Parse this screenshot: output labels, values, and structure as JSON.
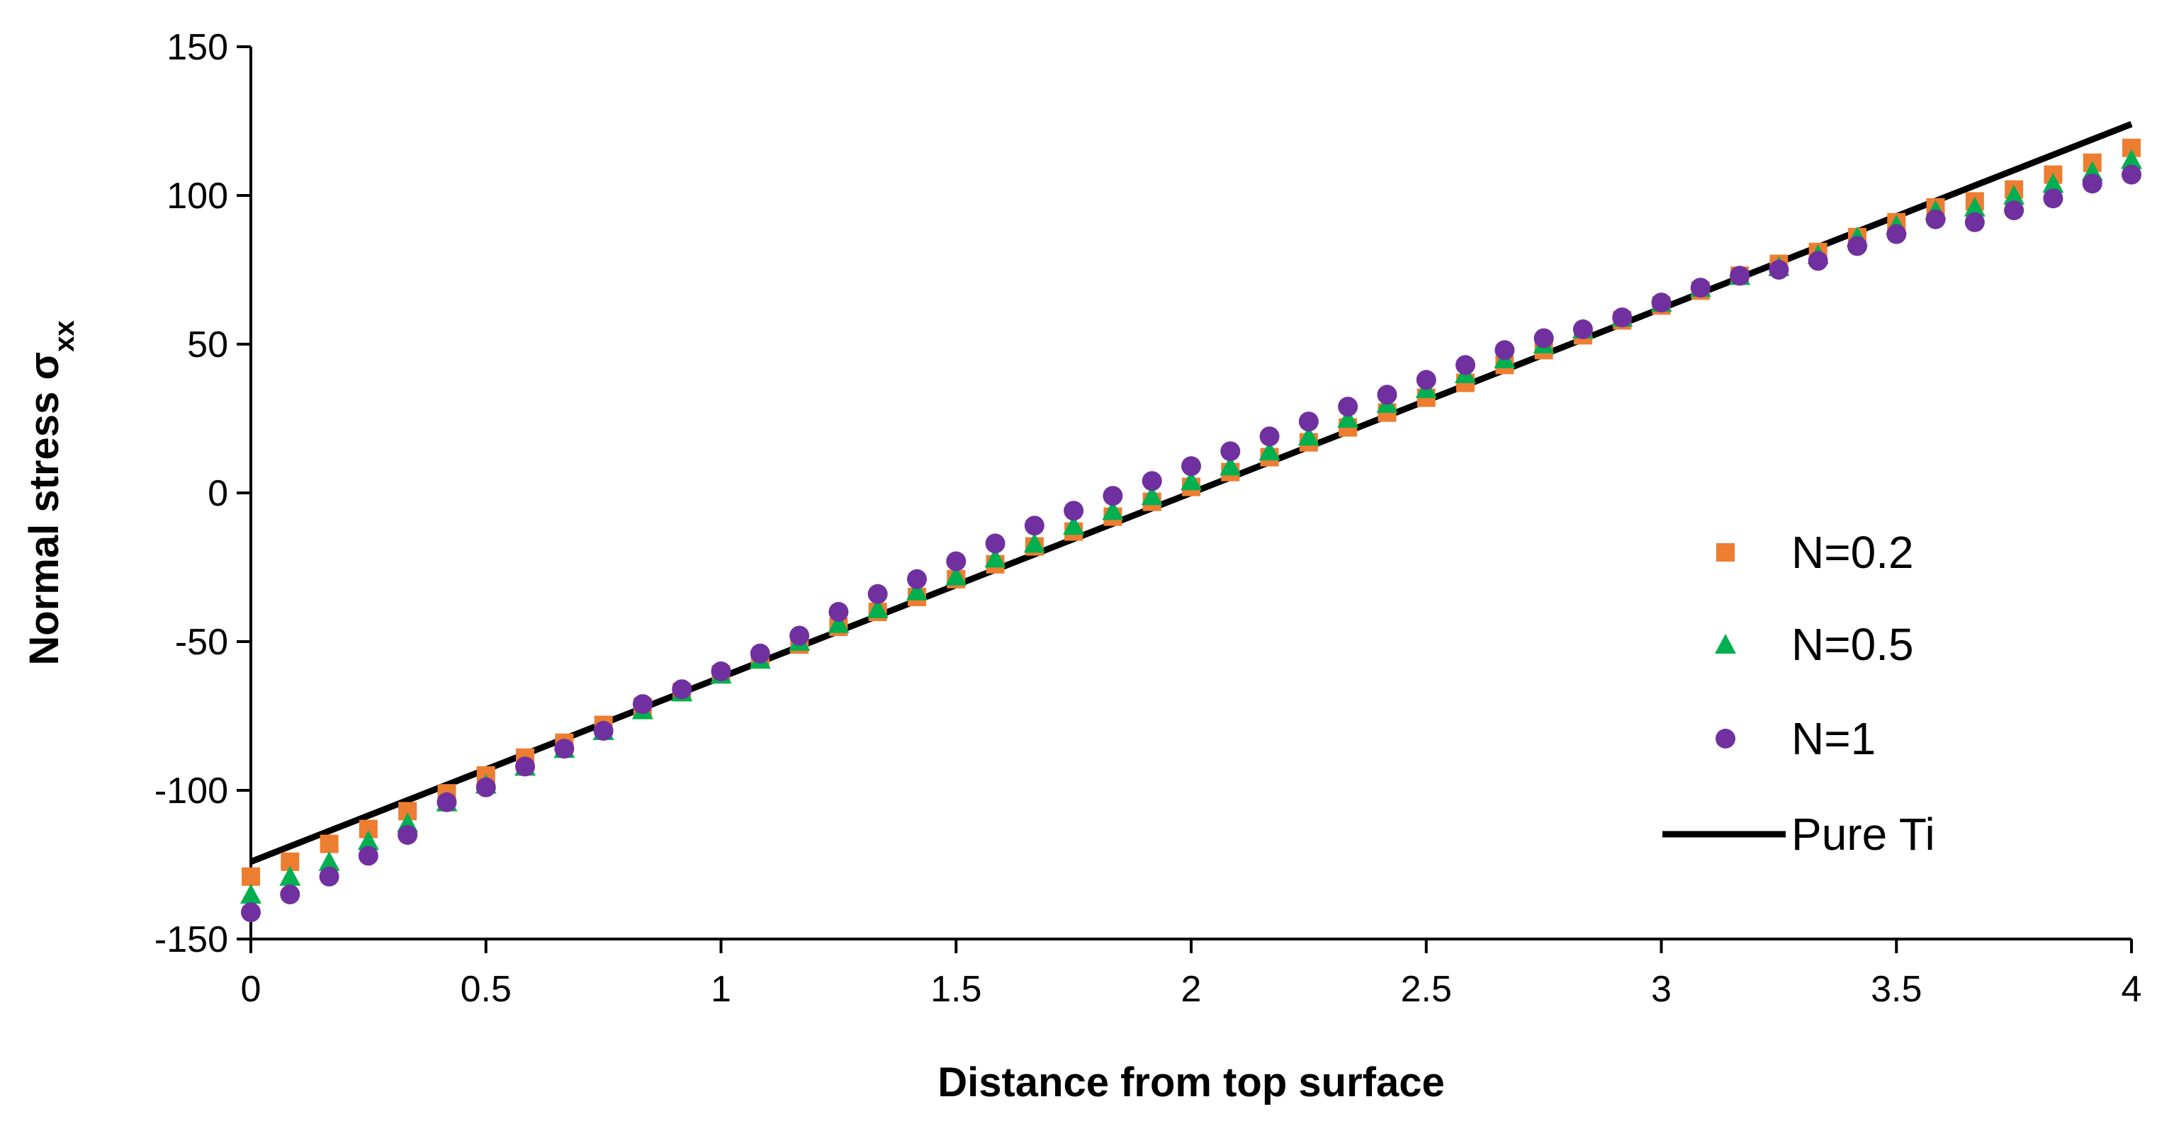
{
  "chart_data": {
    "type": "scatter",
    "title": "",
    "xlabel": "Distance from top surface",
    "ylabel": "Normal stress σ",
    "ylabel_subscript": "xx",
    "xlim": [
      0,
      4
    ],
    "ylim": [
      -150,
      150
    ],
    "x_ticks": [
      "0",
      "0.5",
      "1",
      "1.5",
      "2",
      "2.5",
      "3",
      "3.5",
      "4"
    ],
    "y_ticks": [
      "150",
      "100",
      "50",
      "0",
      "-50",
      "-100",
      "-150"
    ],
    "grid": false,
    "legend_position": "right",
    "x": [
      0,
      0.0833,
      0.1667,
      0.25,
      0.3333,
      0.4167,
      0.5,
      0.5833,
      0.6667,
      0.75,
      0.8333,
      0.9167,
      1.0,
      1.0833,
      1.1667,
      1.25,
      1.3333,
      1.4167,
      1.5,
      1.5833,
      1.6667,
      1.75,
      1.8333,
      1.9167,
      2.0,
      2.0833,
      2.1667,
      2.25,
      2.3333,
      2.4167,
      2.5,
      2.5833,
      2.6667,
      2.75,
      2.8333,
      2.9167,
      3.0,
      3.0833,
      3.1667,
      3.25,
      3.3333,
      3.4167,
      3.5,
      3.5833,
      3.6667,
      3.75,
      3.8333,
      3.9167,
      4.0
    ],
    "series": [
      {
        "name": "N=0.2",
        "marker": "square",
        "color": "#ED7D31",
        "values": [
          -129,
          -124,
          -118,
          -113,
          -107,
          -101,
          -95,
          -89,
          -84,
          -78,
          -72,
          -67,
          -61,
          -56,
          -51,
          -45,
          -40,
          -35,
          -29,
          -24,
          -18,
          -13,
          -8,
          -3,
          2,
          7,
          12,
          17,
          22,
          27,
          32,
          37,
          43,
          48,
          53,
          58,
          63,
          68,
          73,
          77,
          81,
          86,
          91,
          96,
          98,
          102,
          107,
          111,
          116
        ]
      },
      {
        "name": "N=0.5",
        "marker": "triangle",
        "color": "#00B050",
        "values": [
          -135,
          -129,
          -124,
          -117,
          -111,
          -104,
          -98,
          -92,
          -86,
          -80,
          -73,
          -67,
          -61,
          -56,
          -50,
          -44,
          -39,
          -33,
          -28,
          -22,
          -17,
          -11,
          -6,
          -1,
          4,
          9,
          14,
          19,
          25,
          30,
          35,
          40,
          45,
          50,
          55,
          59,
          64,
          69,
          73,
          76,
          80,
          86,
          90,
          95,
          96,
          100,
          104,
          108,
          112
        ]
      },
      {
        "name": "N=1",
        "marker": "circle",
        "color": "#7030A0",
        "values": [
          -141,
          -135,
          -129,
          -122,
          -115,
          -104,
          -99,
          -92,
          -86,
          -80,
          -71,
          -66,
          -60,
          -54,
          -48,
          -40,
          -34,
          -29,
          -23,
          -17,
          -11,
          -6,
          -1,
          4,
          9,
          14,
          19,
          24,
          29,
          33,
          38,
          43,
          48,
          52,
          55,
          59,
          64,
          69,
          73,
          75,
          78,
          83,
          87,
          92,
          91,
          95,
          99,
          104,
          107
        ]
      },
      {
        "name": "Pure Ti",
        "marker": "line",
        "color": "#000000",
        "x": [
          0,
          4
        ],
        "values": [
          -124,
          124
        ]
      }
    ]
  }
}
